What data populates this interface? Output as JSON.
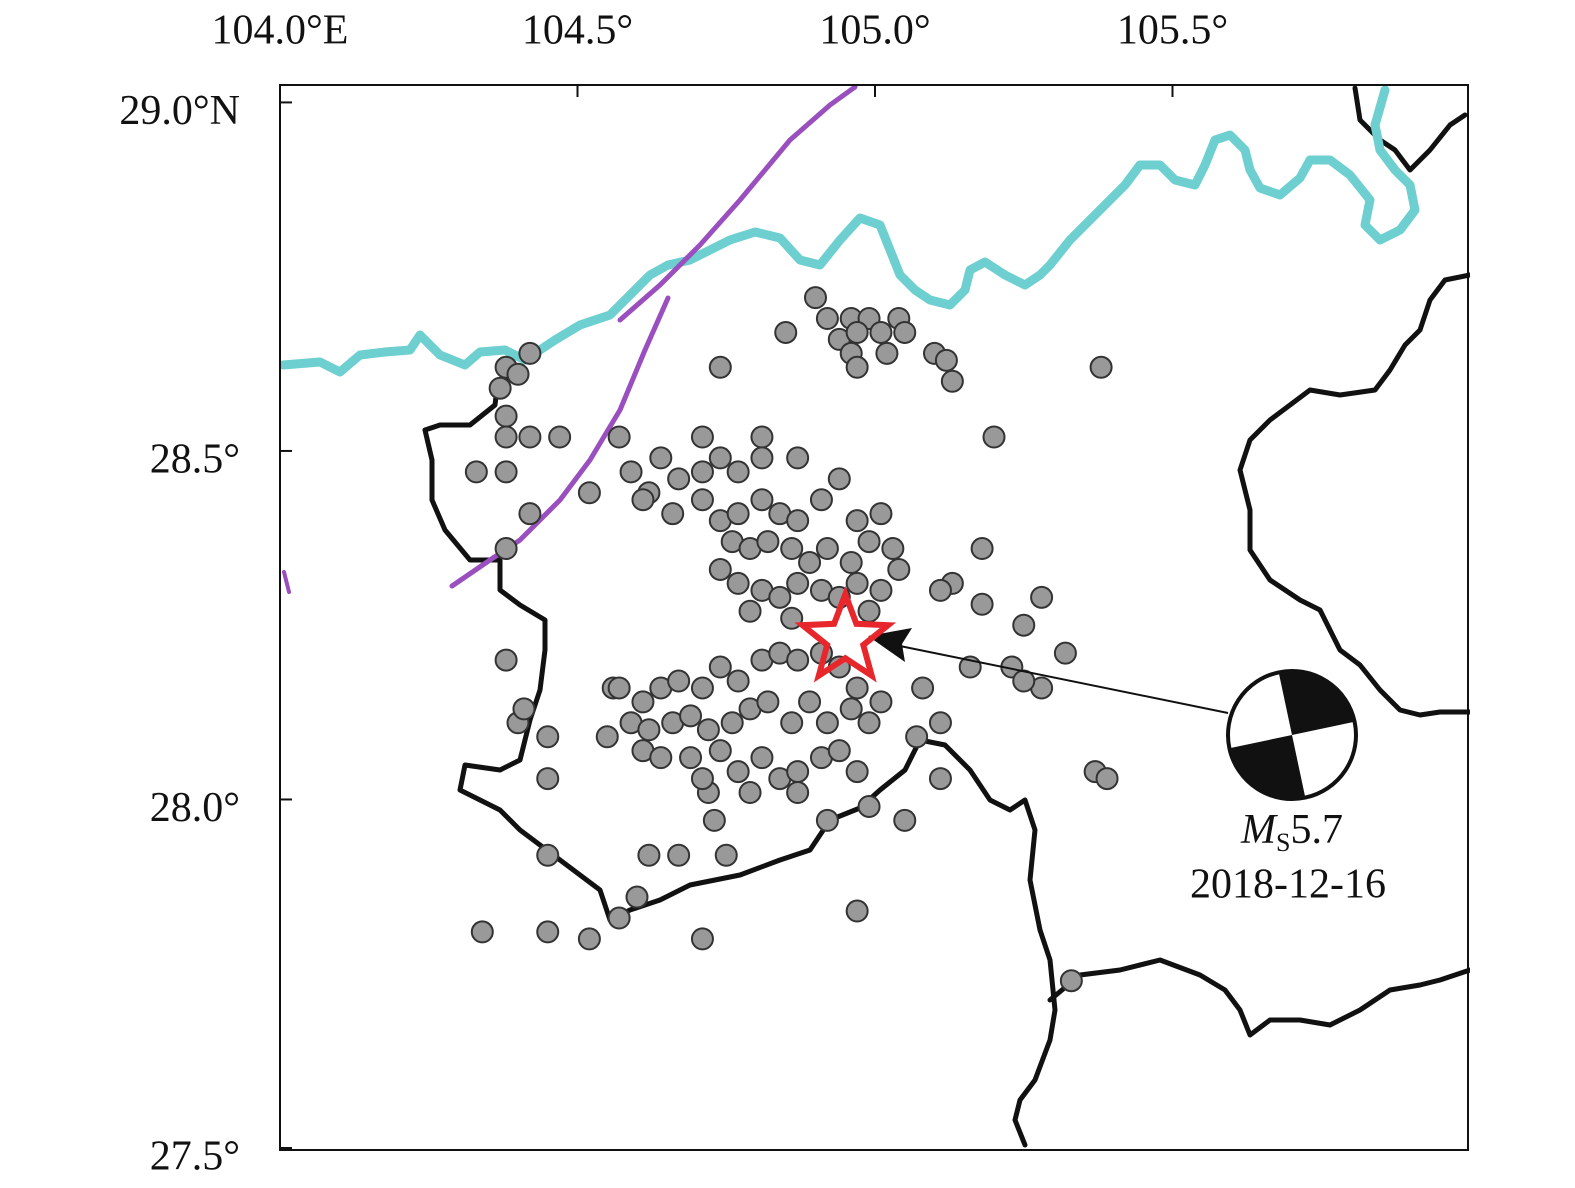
{
  "map": {
    "xlim": [
      104.0,
      106.0
    ],
    "ylim": [
      27.5,
      29.025
    ],
    "xticks": [
      {
        "value": 104.0,
        "label": "104.0°E"
      },
      {
        "value": 104.5,
        "label": "104.5°"
      },
      {
        "value": 105.0,
        "label": "105.0°"
      },
      {
        "value": 105.5,
        "label": "105.5°"
      }
    ],
    "yticks": [
      {
        "value": 29.0,
        "label": "29.0°N"
      },
      {
        "value": 28.5,
        "label": "28.5°"
      },
      {
        "value": 28.0,
        "label": "28.0°"
      },
      {
        "value": 27.5,
        "label": "27.5°"
      }
    ],
    "event_color": "#999999",
    "events": [
      [
        104.9,
        28.72
      ],
      [
        104.92,
        28.69
      ],
      [
        104.96,
        28.69
      ],
      [
        104.99,
        28.69
      ],
      [
        105.04,
        28.69
      ],
      [
        104.94,
        28.66
      ],
      [
        104.97,
        28.67
      ],
      [
        105.01,
        28.67
      ],
      [
        105.05,
        28.67
      ],
      [
        104.85,
        28.67
      ],
      [
        104.96,
        28.64
      ],
      [
        105.02,
        28.64
      ],
      [
        105.1,
        28.64
      ],
      [
        105.12,
        28.63
      ],
      [
        105.13,
        28.6
      ],
      [
        104.97,
        28.62
      ],
      [
        104.74,
        28.62
      ],
      [
        105.38,
        28.62
      ],
      [
        104.42,
        28.64
      ],
      [
        104.38,
        28.62
      ],
      [
        104.4,
        28.61
      ],
      [
        104.37,
        28.59
      ],
      [
        104.38,
        28.55
      ],
      [
        104.38,
        28.52
      ],
      [
        104.42,
        28.52
      ],
      [
        104.47,
        28.52
      ],
      [
        104.33,
        28.47
      ],
      [
        104.38,
        28.47
      ],
      [
        104.42,
        28.41
      ],
      [
        104.52,
        28.44
      ],
      [
        104.38,
        28.36
      ],
      [
        104.57,
        28.52
      ],
      [
        104.71,
        28.52
      ],
      [
        104.81,
        28.52
      ],
      [
        104.87,
        28.49
      ],
      [
        105.2,
        28.52
      ],
      [
        105.28,
        28.29
      ],
      [
        105.18,
        28.36
      ],
      [
        105.13,
        28.31
      ],
      [
        105.11,
        28.3
      ],
      [
        105.18,
        28.28
      ],
      [
        105.25,
        28.25
      ],
      [
        105.32,
        28.21
      ],
      [
        105.16,
        28.19
      ],
      [
        105.23,
        28.19
      ],
      [
        105.28,
        28.16
      ],
      [
        105.25,
        28.17
      ],
      [
        105.08,
        28.16
      ],
      [
        105.11,
        28.11
      ],
      [
        105.07,
        28.09
      ],
      [
        105.11,
        28.03
      ],
      [
        105.37,
        28.04
      ],
      [
        105.39,
        28.03
      ],
      [
        105.05,
        27.97
      ],
      [
        104.99,
        27.99
      ],
      [
        104.92,
        27.97
      ],
      [
        104.73,
        27.97
      ],
      [
        104.72,
        28.01
      ],
      [
        104.62,
        27.92
      ],
      [
        104.67,
        27.92
      ],
      [
        104.75,
        27.92
      ],
      [
        104.45,
        27.92
      ],
      [
        104.45,
        28.03
      ],
      [
        104.45,
        28.09
      ],
      [
        104.4,
        28.11
      ],
      [
        104.41,
        28.13
      ],
      [
        104.38,
        28.2
      ],
      [
        104.56,
        28.16
      ],
      [
        104.34,
        27.81
      ],
      [
        104.45,
        27.81
      ],
      [
        104.52,
        27.8
      ],
      [
        104.57,
        27.83
      ],
      [
        104.6,
        27.86
      ],
      [
        104.71,
        27.8
      ],
      [
        104.97,
        27.84
      ],
      [
        105.33,
        27.74
      ],
      [
        104.59,
        28.47
      ],
      [
        104.62,
        28.44
      ],
      [
        104.64,
        28.49
      ],
      [
        104.67,
        28.46
      ],
      [
        104.71,
        28.47
      ],
      [
        104.74,
        28.49
      ],
      [
        104.77,
        28.47
      ],
      [
        104.81,
        28.49
      ],
      [
        104.61,
        28.43
      ],
      [
        104.66,
        28.41
      ],
      [
        104.71,
        28.43
      ],
      [
        104.74,
        28.4
      ],
      [
        104.77,
        28.41
      ],
      [
        104.81,
        28.43
      ],
      [
        104.84,
        28.41
      ],
      [
        104.87,
        28.4
      ],
      [
        104.91,
        28.43
      ],
      [
        104.94,
        28.46
      ],
      [
        104.97,
        28.4
      ],
      [
        105.01,
        28.41
      ],
      [
        104.76,
        28.37
      ],
      [
        104.79,
        28.36
      ],
      [
        104.82,
        28.37
      ],
      [
        104.86,
        28.36
      ],
      [
        104.89,
        28.34
      ],
      [
        104.92,
        28.36
      ],
      [
        104.96,
        28.34
      ],
      [
        104.99,
        28.37
      ],
      [
        105.03,
        28.36
      ],
      [
        104.74,
        28.33
      ],
      [
        104.77,
        28.31
      ],
      [
        104.81,
        28.3
      ],
      [
        104.84,
        28.29
      ],
      [
        104.87,
        28.31
      ],
      [
        104.91,
        28.3
      ],
      [
        104.94,
        28.29
      ],
      [
        104.97,
        28.31
      ],
      [
        105.01,
        28.3
      ],
      [
        105.04,
        28.33
      ],
      [
        104.79,
        28.27
      ],
      [
        104.86,
        28.26
      ],
      [
        104.99,
        28.27
      ],
      [
        104.57,
        28.16
      ],
      [
        104.61,
        28.14
      ],
      [
        104.64,
        28.16
      ],
      [
        104.67,
        28.17
      ],
      [
        104.71,
        28.16
      ],
      [
        104.74,
        28.19
      ],
      [
        104.77,
        28.17
      ],
      [
        104.81,
        28.2
      ],
      [
        104.84,
        28.21
      ],
      [
        104.87,
        28.2
      ],
      [
        104.91,
        28.21
      ],
      [
        104.94,
        28.19
      ],
      [
        104.97,
        28.16
      ],
      [
        105.01,
        28.14
      ],
      [
        104.59,
        28.11
      ],
      [
        104.62,
        28.1
      ],
      [
        104.66,
        28.11
      ],
      [
        104.69,
        28.12
      ],
      [
        104.72,
        28.1
      ],
      [
        104.76,
        28.11
      ],
      [
        104.79,
        28.13
      ],
      [
        104.82,
        28.14
      ],
      [
        104.86,
        28.11
      ],
      [
        104.89,
        28.14
      ],
      [
        104.92,
        28.11
      ],
      [
        104.96,
        28.13
      ],
      [
        104.99,
        28.11
      ],
      [
        104.55,
        28.09
      ],
      [
        104.61,
        28.07
      ],
      [
        104.64,
        28.06
      ],
      [
        104.69,
        28.06
      ],
      [
        104.74,
        28.07
      ],
      [
        104.77,
        28.04
      ],
      [
        104.81,
        28.06
      ],
      [
        104.84,
        28.03
      ],
      [
        104.87,
        28.04
      ],
      [
        104.91,
        28.06
      ],
      [
        104.94,
        28.07
      ],
      [
        104.97,
        28.04
      ],
      [
        104.71,
        28.03
      ],
      [
        104.79,
        28.01
      ],
      [
        104.87,
        28.01
      ]
    ],
    "mainshock": [
      104.95,
      28.23
    ],
    "mainshock_color": "#e8272d",
    "mag_symbol": "M",
    "mag_subscript": "S",
    "magnitude": 5.7,
    "date": "2018-12-16"
  }
}
